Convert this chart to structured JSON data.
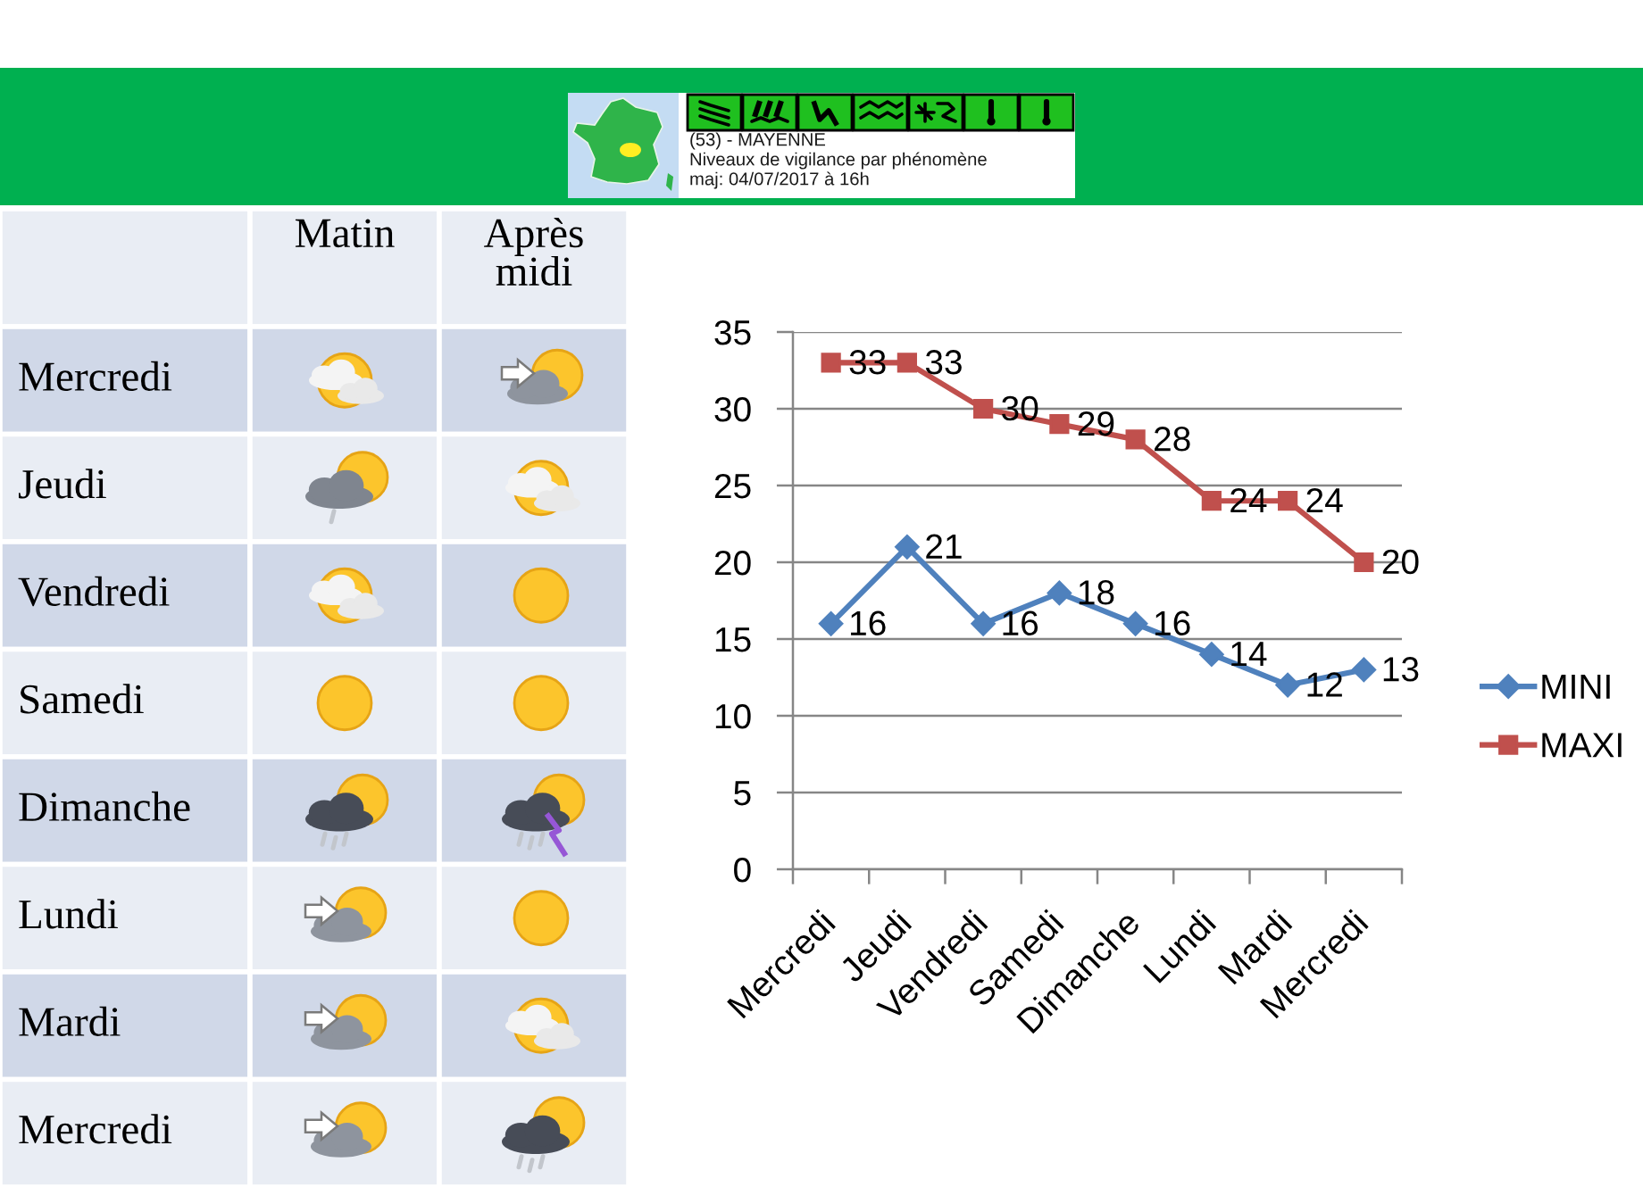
{
  "chart_data": [
    {
      "type": "other",
      "annotations": [
        "(53) - MAYENNE",
        "Niveaux de vigilance par phénomène",
        "maj: 04/07/2017 à 16h"
      ]
    },
    {
      "type": "other",
      "categories": [
        "Matin",
        "Après midi"
      ],
      "y_categories": [
        "Mercredi",
        "Jeudi",
        "Vendredi",
        "Samedi",
        "Dimanche",
        "Lundi",
        "Mardi",
        "Mercredi"
      ]
    },
    {
      "type": "line",
      "categories": [
        "Mercredi",
        "Jeudi",
        "Vendredi",
        "Samedi",
        "Dimanche",
        "Lundi",
        "Mardi",
        "Mercredi"
      ],
      "series": [
        {
          "name": "MINI",
          "color": "#4f81bd",
          "marker": "diamond",
          "values": [
            16,
            21,
            16,
            18,
            16,
            14,
            12,
            13
          ]
        },
        {
          "name": "MAXI",
          "color": "#c0504d",
          "marker": "square",
          "values": [
            33,
            33,
            30,
            29,
            28,
            24,
            24,
            20
          ]
        }
      ],
      "ylim": [
        0,
        35
      ],
      "yticks": [
        0,
        5,
        10,
        15,
        20,
        25,
        30,
        35
      ],
      "grid": "y",
      "legend": "right",
      "data_labels": true,
      "line_style": "solid"
    }
  ]
}
